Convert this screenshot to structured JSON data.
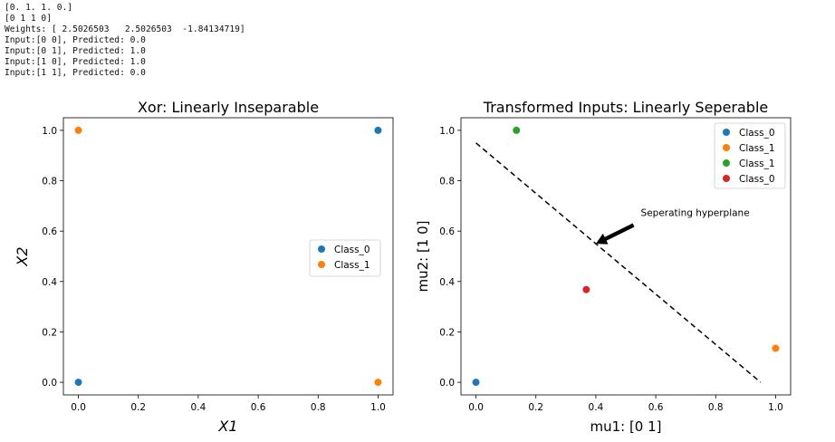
{
  "console_lines": [
    "[0. 1. 1. 0.]",
    "[0 1 1 0]",
    "Weights: [ 2.5026503   2.5026503  -1.84134719]",
    "Input:[0 0], Predicted: 0.0",
    "Input:[0 1], Predicted: 1.0",
    "Input:[1 0], Predicted: 1.0",
    "Input:[1 1], Predicted: 0.0"
  ],
  "chart_data": [
    {
      "type": "scatter",
      "title": "Xor: Linearly Inseparable",
      "xlabel": "X1",
      "ylabel": "X2",
      "xlim": [
        -0.05,
        1.05
      ],
      "ylim": [
        -0.05,
        1.05
      ],
      "xticks": [
        "0.0",
        "0.2",
        "0.4",
        "0.6",
        "0.8",
        "1.0"
      ],
      "yticks": [
        "0.0",
        "0.2",
        "0.4",
        "0.6",
        "0.8",
        "1.0"
      ],
      "grid": false,
      "legend_position": "center-right",
      "series": [
        {
          "name": "Class_0",
          "color": "#1f77b4",
          "x": [
            0,
            1
          ],
          "y": [
            0,
            1
          ]
        },
        {
          "name": "Class_1",
          "color": "#ff7f0e",
          "x": [
            0,
            1
          ],
          "y": [
            1,
            0
          ]
        }
      ]
    },
    {
      "type": "scatter",
      "title": "Transformed Inputs: Linearly Seperable",
      "xlabel": "mu1: [0 1]",
      "ylabel": "mu2: [1 0]",
      "xlim": [
        -0.05,
        1.05
      ],
      "ylim": [
        -0.05,
        1.05
      ],
      "xticks": [
        "0.0",
        "0.2",
        "0.4",
        "0.6",
        "0.8",
        "1.0"
      ],
      "yticks": [
        "0.0",
        "0.2",
        "0.4",
        "0.6",
        "0.8",
        "1.0"
      ],
      "grid": false,
      "legend_position": "top-right",
      "series": [
        {
          "name": "Class_0",
          "color": "#1f77b4",
          "x": [
            0.0
          ],
          "y": [
            0.0
          ]
        },
        {
          "name": "Class_1",
          "color": "#ff7f0e",
          "x": [
            1.0
          ],
          "y": [
            0.135
          ]
        },
        {
          "name": "Class_1",
          "color": "#2ca02c",
          "x": [
            0.135
          ],
          "y": [
            1.0
          ]
        },
        {
          "name": "Class_0",
          "color": "#d62728",
          "x": [
            0.368
          ],
          "y": [
            0.368
          ]
        }
      ],
      "line": {
        "style": "dashed",
        "color": "#000000",
        "x": [
          0.0,
          0.95
        ],
        "y": [
          0.95,
          0.0
        ]
      },
      "annotation": {
        "text": "Seperating hyperplane",
        "text_at": [
          0.55,
          0.66
        ],
        "arrow_to": [
          0.4,
          0.55
        ]
      }
    }
  ]
}
